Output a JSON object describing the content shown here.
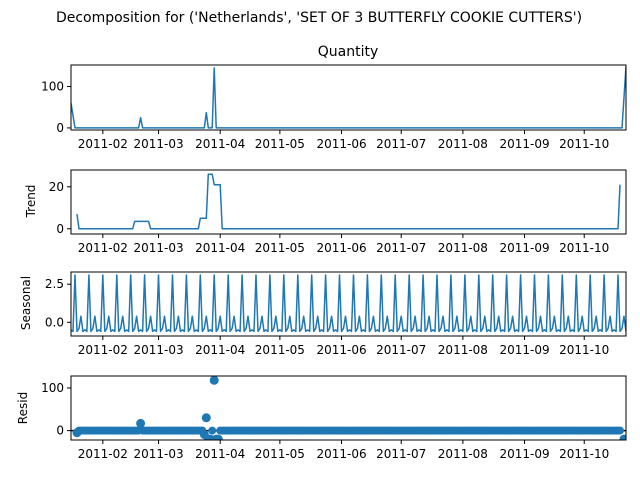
{
  "suptitle": "Decomposition for ('Netherlands', 'SET OF 3 BUTTERFLY COOKIE CUTTERS')",
  "colors": {
    "series": "#1f77b4",
    "axis": "#000000",
    "zero_line": "#000000"
  },
  "chart_data": [
    {
      "type": "line",
      "title": "Quantity",
      "ylabel": "",
      "ylim": [
        -5,
        152
      ],
      "yticks": [
        0,
        100
      ],
      "xlim": [
        "2011-01-16",
        "2011-10-22"
      ],
      "xticks": [
        "2011-02",
        "2011-03",
        "2011-04",
        "2011-05",
        "2011-06",
        "2011-07",
        "2011-08",
        "2011-09",
        "2011-10"
      ],
      "series": [
        {
          "x": [
            "2011-01-16",
            "2011-01-18",
            "2011-02-19",
            "2011-02-20",
            "2011-02-21",
            "2011-03-24",
            "2011-03-25",
            "2011-03-26",
            "2011-03-28",
            "2011-03-29",
            "2011-03-30",
            "2011-10-20",
            "2011-10-22"
          ],
          "values": [
            60,
            0,
            0,
            25,
            0,
            0,
            37,
            0,
            0,
            145,
            0,
            0,
            148
          ]
        }
      ]
    },
    {
      "type": "line",
      "title": "",
      "ylabel": "Trend",
      "ylim": [
        -2.5,
        28
      ],
      "yticks": [
        0,
        20
      ],
      "xlim": [
        "2011-01-16",
        "2011-10-22"
      ],
      "xticks": [
        "2011-02",
        "2011-03",
        "2011-04",
        "2011-05",
        "2011-06",
        "2011-07",
        "2011-08",
        "2011-09",
        "2011-10"
      ],
      "series": [
        {
          "x": [
            "2011-01-19",
            "2011-01-20",
            "2011-02-16",
            "2011-02-17",
            "2011-02-24",
            "2011-02-25",
            "2011-03-21",
            "2011-03-22",
            "2011-03-25",
            "2011-03-26",
            "2011-03-28",
            "2011-03-29",
            "2011-04-01",
            "2011-04-02",
            "2011-10-18",
            "2011-10-19"
          ],
          "values": [
            7,
            0,
            0,
            3.5,
            3.5,
            0,
            0,
            5,
            5,
            26,
            26,
            21,
            21,
            0,
            0,
            21
          ]
        }
      ]
    },
    {
      "type": "line",
      "title": "",
      "ylabel": "Seasonal",
      "ylim": [
        -0.9,
        3.3
      ],
      "yticks": [
        0.0,
        2.5
      ],
      "ytick_labels": [
        "0.0",
        "2.5"
      ],
      "xlim": [
        "2011-01-16",
        "2011-10-22"
      ],
      "xticks": [
        "2011-02",
        "2011-03",
        "2011-04",
        "2011-05",
        "2011-06",
        "2011-07",
        "2011-08",
        "2011-09",
        "2011-10"
      ],
      "seasonal_start": "2011-01-16",
      "period_days": 7,
      "pattern": [
        -0.5,
        -0.6,
        3.1,
        -0.6,
        -0.4,
        0.4,
        -0.6
      ]
    },
    {
      "type": "scatter",
      "title": "",
      "ylabel": "Resid",
      "ylim": [
        -22,
        128
      ],
      "yticks": [
        0,
        100
      ],
      "xlim": [
        "2011-01-16",
        "2011-10-22"
      ],
      "xticks": [
        "2011-02",
        "2011-03",
        "2011-04",
        "2011-05",
        "2011-06",
        "2011-07",
        "2011-08",
        "2011-09",
        "2011-10"
      ],
      "zero_line": true,
      "baseline": {
        "start": "2011-01-19",
        "end": "2011-10-19",
        "value": 0
      },
      "outliers": [
        {
          "x": "2011-01-19",
          "y": -5
        },
        {
          "x": "2011-02-20",
          "y": 17
        },
        {
          "x": "2011-03-24",
          "y": -9
        },
        {
          "x": "2011-03-25",
          "y": 30
        },
        {
          "x": "2011-03-26",
          "y": -20
        },
        {
          "x": "2011-03-27",
          "y": -20
        },
        {
          "x": "2011-03-29",
          "y": 118
        },
        {
          "x": "2011-03-30",
          "y": -20
        },
        {
          "x": "2011-03-31",
          "y": -20
        },
        {
          "x": "2011-10-21",
          "y": -20
        }
      ]
    }
  ]
}
